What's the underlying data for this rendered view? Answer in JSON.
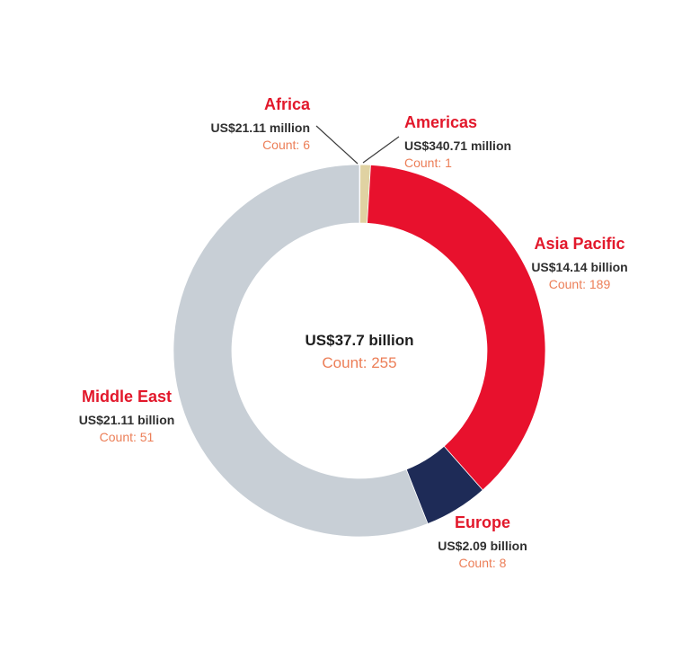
{
  "chart_data": {
    "type": "pie",
    "subtype": "donut",
    "unit": "US$ millions",
    "direction": "clockwise",
    "start_angle_deg": 0,
    "center_label": {
      "value": "US$37.7 billion",
      "count": "Count: 255"
    },
    "total": {
      "value_millions": 37701.82,
      "count": 255
    },
    "segments": [
      {
        "name": "Africa",
        "value_label": "US$21.11 million",
        "count_label": "Count: 6",
        "value_millions": 21.11,
        "count": 6,
        "color": "#f1ead7"
      },
      {
        "name": "Americas",
        "value_label": "US$340.71 million",
        "count_label": "Count: 1",
        "value_millions": 340.71,
        "count": 1,
        "color": "#e0d2a2"
      },
      {
        "name": "Asia Pacific",
        "value_label": "US$14.14 billion",
        "count_label": "Count: 189",
        "value_millions": 14140,
        "count": 189,
        "color": "#e8112d"
      },
      {
        "name": "Europe",
        "value_label": "US$2.09 billion",
        "count_label": "Count: 8",
        "value_millions": 2090,
        "count": 8,
        "color": "#1e2b57"
      },
      {
        "name": "Middle East",
        "value_label": "US$21.11 billion",
        "count_label": "Count: 51",
        "value_millions": 21110,
        "count": 51,
        "color": "#c8cfd6"
      }
    ],
    "colors": {
      "segment_title": "#e2182b",
      "segment_value": "#303030",
      "segment_count": "#ec7e57",
      "leader_line": "#3c3c3c"
    }
  }
}
